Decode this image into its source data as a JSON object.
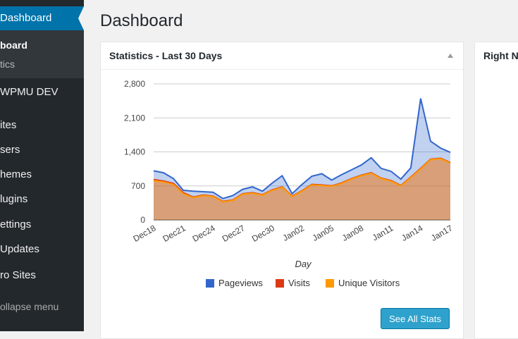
{
  "sidebar": {
    "active_item": "Dashboard",
    "submenu": [
      "board",
      "tics"
    ],
    "items": [
      "WPMU DEV",
      "ites",
      "sers",
      "hemes",
      "lugins",
      "ettings",
      "Updates",
      "ro Sites"
    ],
    "collapse": "ollapse menu"
  },
  "page_title": "Dashboard",
  "stats_panel": {
    "title": "Statistics - Last 30 Days",
    "button": "See All Stats"
  },
  "right_panel": {
    "title": "Right N"
  },
  "chart_data": {
    "type": "area",
    "x": [
      "Dec18",
      "Dec19",
      "Dec20",
      "Dec21",
      "Dec22",
      "Dec23",
      "Dec24",
      "Dec25",
      "Dec26",
      "Dec27",
      "Dec28",
      "Dec29",
      "Dec30",
      "Dec31",
      "Jan01",
      "Jan02",
      "Jan03",
      "Jan04",
      "Jan05",
      "Jan06",
      "Jan07",
      "Jan08",
      "Jan09",
      "Jan10",
      "Jan11",
      "Jan12",
      "Jan13",
      "Jan14",
      "Jan15",
      "Jan16",
      "Jan17"
    ],
    "tick_labels": [
      "Dec18",
      "Dec21",
      "Dec24",
      "Dec27",
      "Dec30",
      "Jan02",
      "Jan05",
      "Jan08",
      "Jan11",
      "Jan14",
      "Jan17"
    ],
    "series": [
      {
        "name": "Pageviews",
        "color": "#3366cc",
        "values": [
          1010,
          970,
          850,
          610,
          590,
          580,
          570,
          440,
          500,
          630,
          680,
          590,
          760,
          910,
          540,
          730,
          900,
          950,
          820,
          930,
          1030,
          1130,
          1280,
          1060,
          1000,
          840,
          1070,
          2500,
          1620,
          1480,
          1390
        ]
      },
      {
        "name": "Visits",
        "color": "#dc3912",
        "values": [
          830,
          800,
          750,
          560,
          470,
          510,
          490,
          380,
          410,
          540,
          560,
          520,
          620,
          680,
          490,
          600,
          730,
          720,
          700,
          760,
          850,
          920,
          970,
          860,
          810,
          710,
          880,
          1060,
          1250,
          1270,
          1180
        ]
      },
      {
        "name": "Unique Visitors",
        "color": "#ff9900",
        "values": [
          810,
          780,
          730,
          540,
          460,
          500,
          480,
          370,
          400,
          530,
          550,
          510,
          610,
          670,
          480,
          590,
          720,
          710,
          690,
          750,
          840,
          910,
          960,
          850,
          800,
          700,
          870,
          1050,
          1240,
          1260,
          1170
        ]
      }
    ],
    "yticks": [
      "0",
      "700",
      "1,400",
      "2,100",
      "2,800"
    ],
    "ylim": [
      0,
      2800
    ],
    "xlabel": "Day",
    "ylabel": "",
    "legend": "bottom",
    "grid": true
  }
}
